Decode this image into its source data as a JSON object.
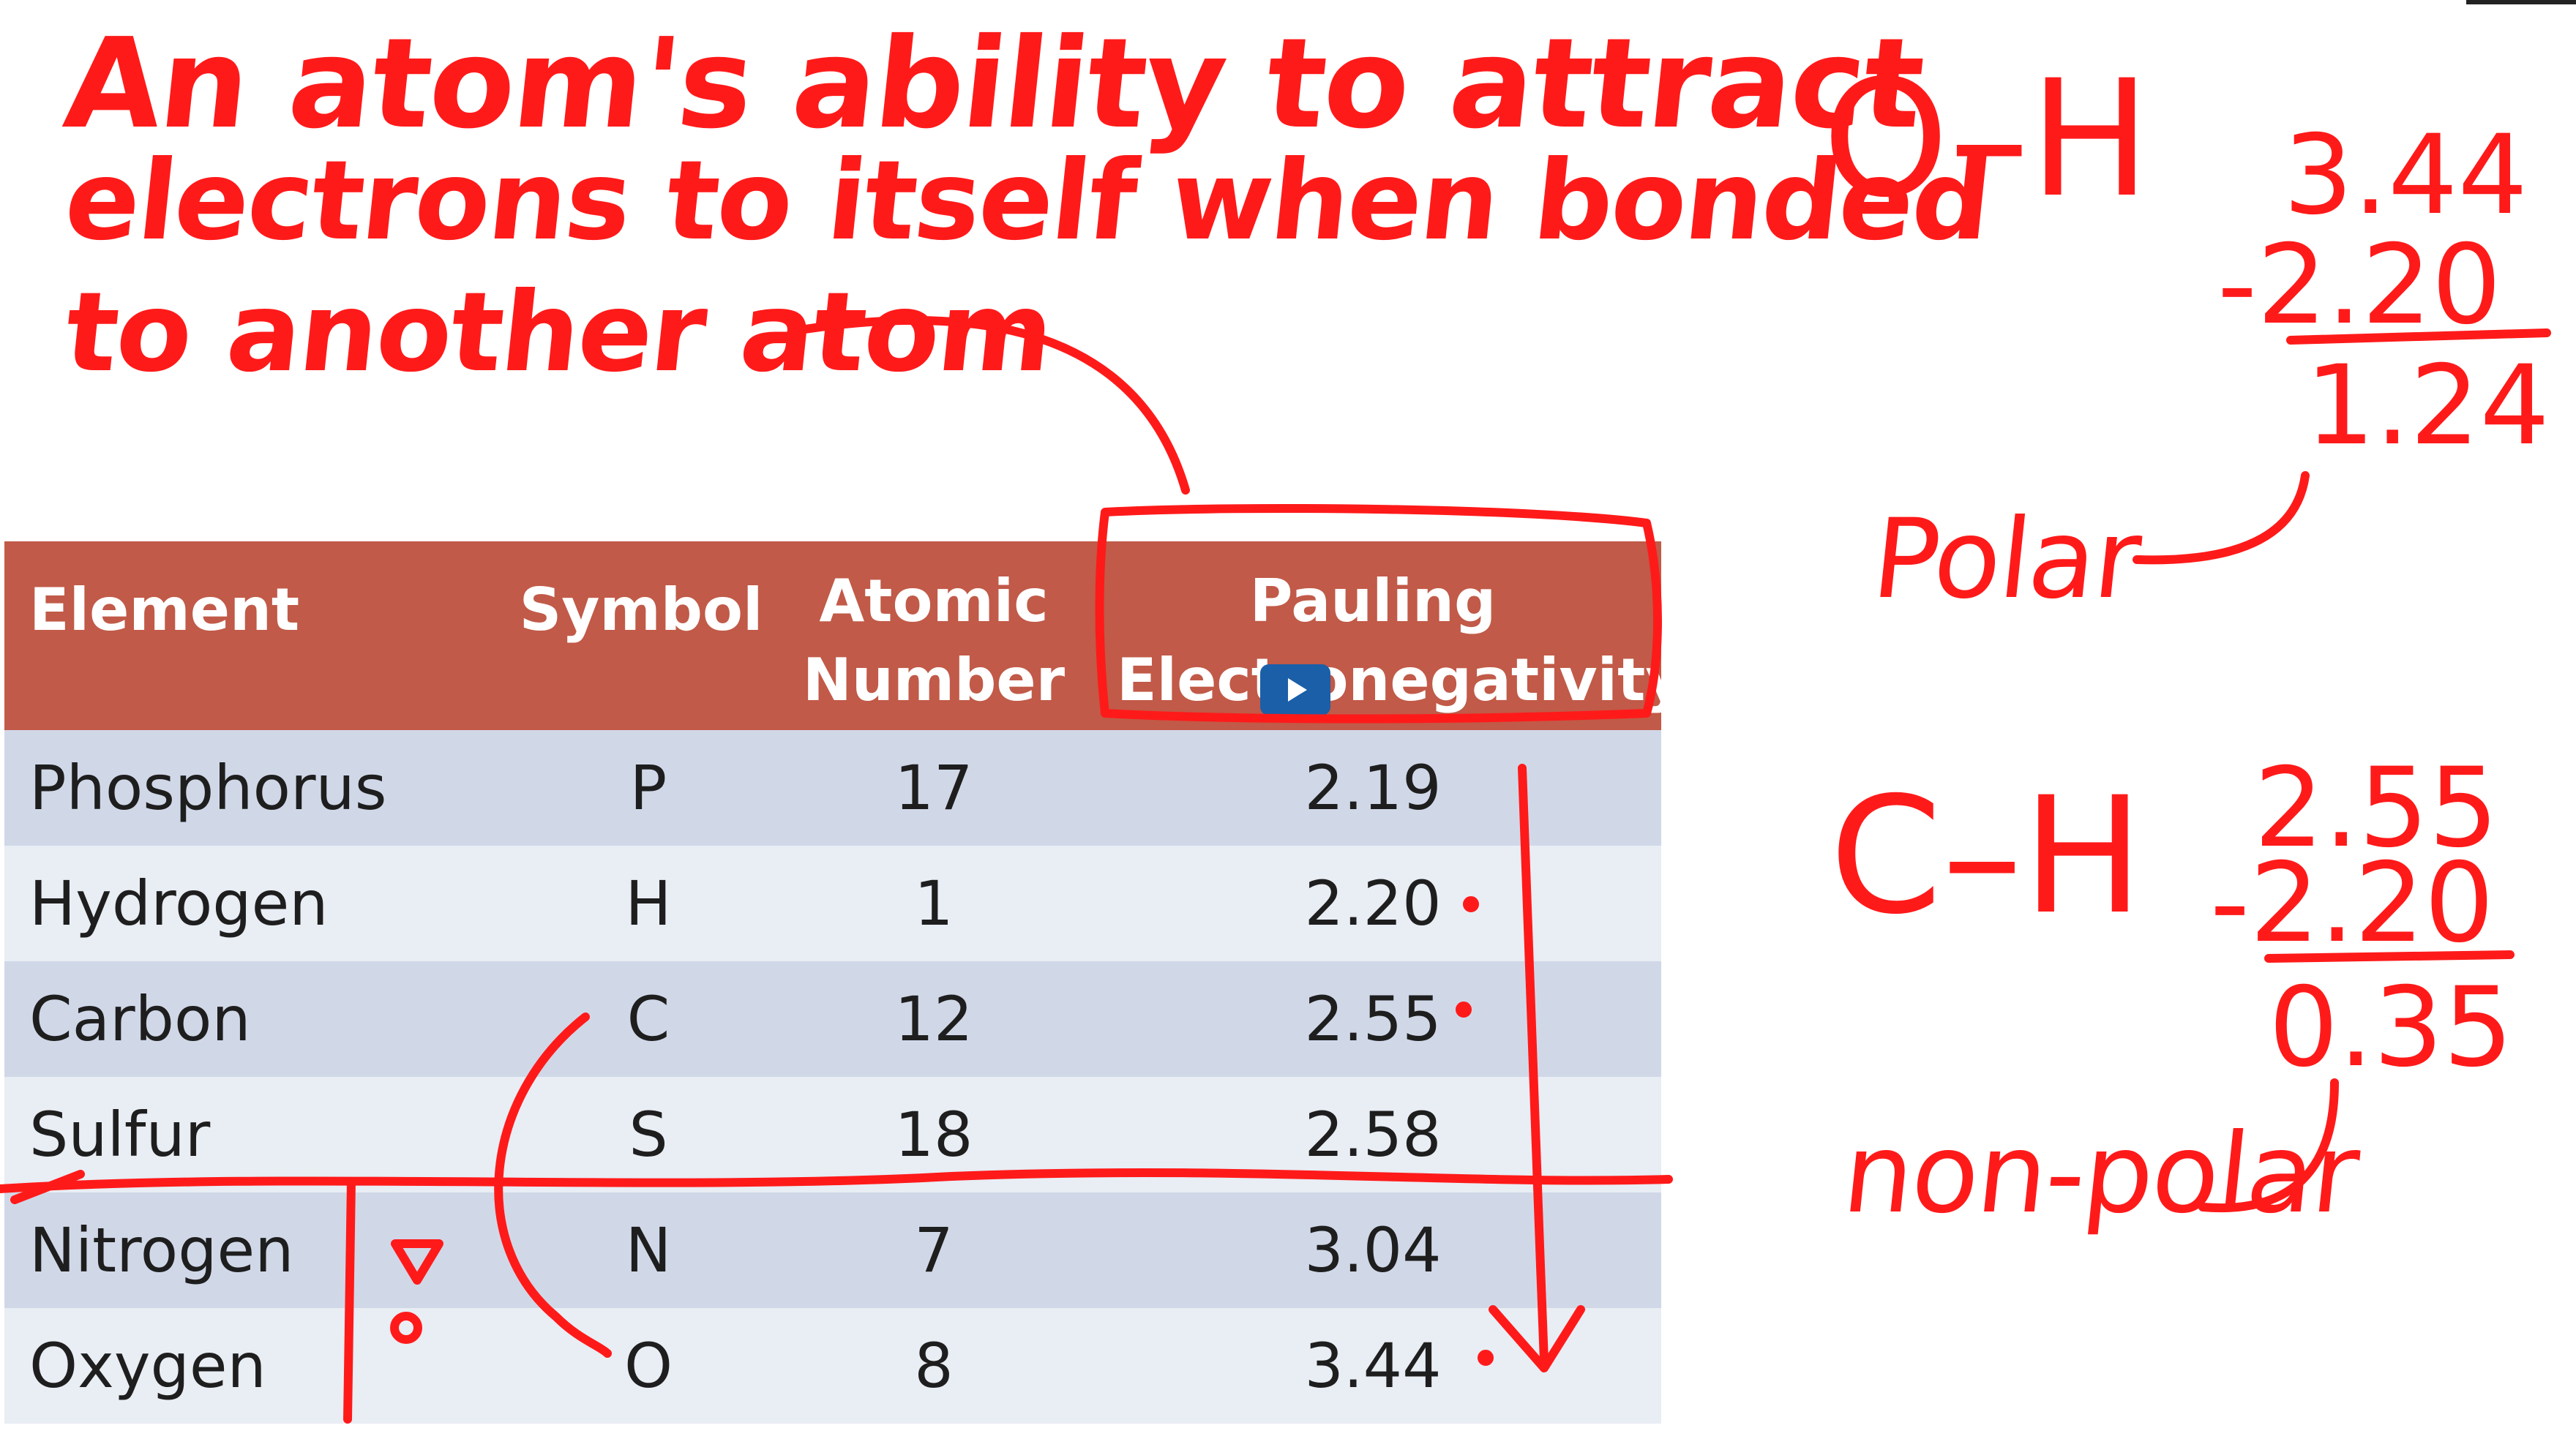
{
  "definition": {
    "line1": "An atom's ability to attract",
    "line2": "electrons to itself when bonded",
    "line3": "to another atom"
  },
  "table": {
    "headers": {
      "element": "Element",
      "symbol": "Symbol",
      "atomic_number_1": "Atomic",
      "atomic_number_2": "Number",
      "electronegativity_1": "Pauling",
      "electronegativity_2": "Electronegativity"
    },
    "rows": [
      {
        "element": "Phosphorus",
        "symbol": "P",
        "number": "17",
        "en": "2.19"
      },
      {
        "element": "Hydrogen",
        "symbol": "H",
        "number": "1",
        "en": "2.20"
      },
      {
        "element": "Carbon",
        "symbol": "C",
        "number": "12",
        "en": "2.55"
      },
      {
        "element": "Sulfur",
        "symbol": "S",
        "number": "18",
        "en": "2.58"
      },
      {
        "element": "Nitrogen",
        "symbol": "N",
        "number": "7",
        "en": "3.04"
      },
      {
        "element": "Oxygen",
        "symbol": "O",
        "number": "8",
        "en": "3.44"
      }
    ]
  },
  "oh": {
    "bond": "O–H",
    "a": "3.44",
    "b": "-2.20",
    "diff": "1.24",
    "label": "Polar"
  },
  "ch": {
    "bond": "C–H",
    "a": "2.55",
    "b": "-2.20",
    "diff": "0.35",
    "label": "non-polar"
  },
  "colors": {
    "ink": "#ff1a1a",
    "header": "#c15a48",
    "row_odd": "#d0d8e8",
    "row_even": "#e9edf4",
    "play": "#1b5fa8"
  },
  "icons": {
    "play": "play-icon"
  }
}
